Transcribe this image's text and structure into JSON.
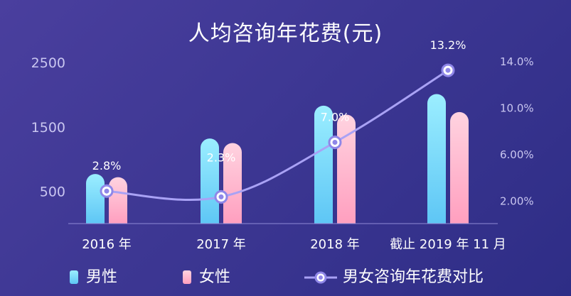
{
  "title": "人均咨询年花费(元)",
  "chart_data": {
    "type": "bar",
    "title": "人均咨询年花费(元)",
    "categories": [
      "2016 年",
      "2017 年",
      "2018 年",
      "截止 2019 年 11 月"
    ],
    "series": [
      {
        "name": "男性",
        "type": "bar",
        "axis": "left",
        "values": [
          770,
          1320,
          1830,
          2010
        ],
        "color_top": "#9beeff",
        "color_bottom": "#5ec6f5"
      },
      {
        "name": "女性",
        "type": "bar",
        "axis": "left",
        "values": [
          720,
          1250,
          1690,
          1730
        ],
        "color_top": "#ffd3e0",
        "color_bottom": "#ff9fbf"
      },
      {
        "name": "男女咨询年花费对比",
        "type": "line",
        "axis": "right",
        "values": [
          2.8,
          2.3,
          7.0,
          13.2
        ],
        "labels": [
          "2.8%",
          "2.3%",
          "7.0%",
          "13.2%"
        ],
        "color": "#a9a2f5"
      }
    ],
    "y_left": {
      "range": [
        0,
        2500
      ],
      "ticks": [
        "500",
        "1500",
        "2500"
      ],
      "tick_values": [
        500,
        1500,
        2500
      ]
    },
    "y_right": {
      "range": [
        0,
        14.0
      ],
      "ticks": [
        "2.00%",
        "6.00%",
        "10.0%",
        "14.0%"
      ],
      "tick_values": [
        2,
        6,
        10,
        14
      ]
    },
    "grid": false,
    "legend_position": "bottom"
  }
}
